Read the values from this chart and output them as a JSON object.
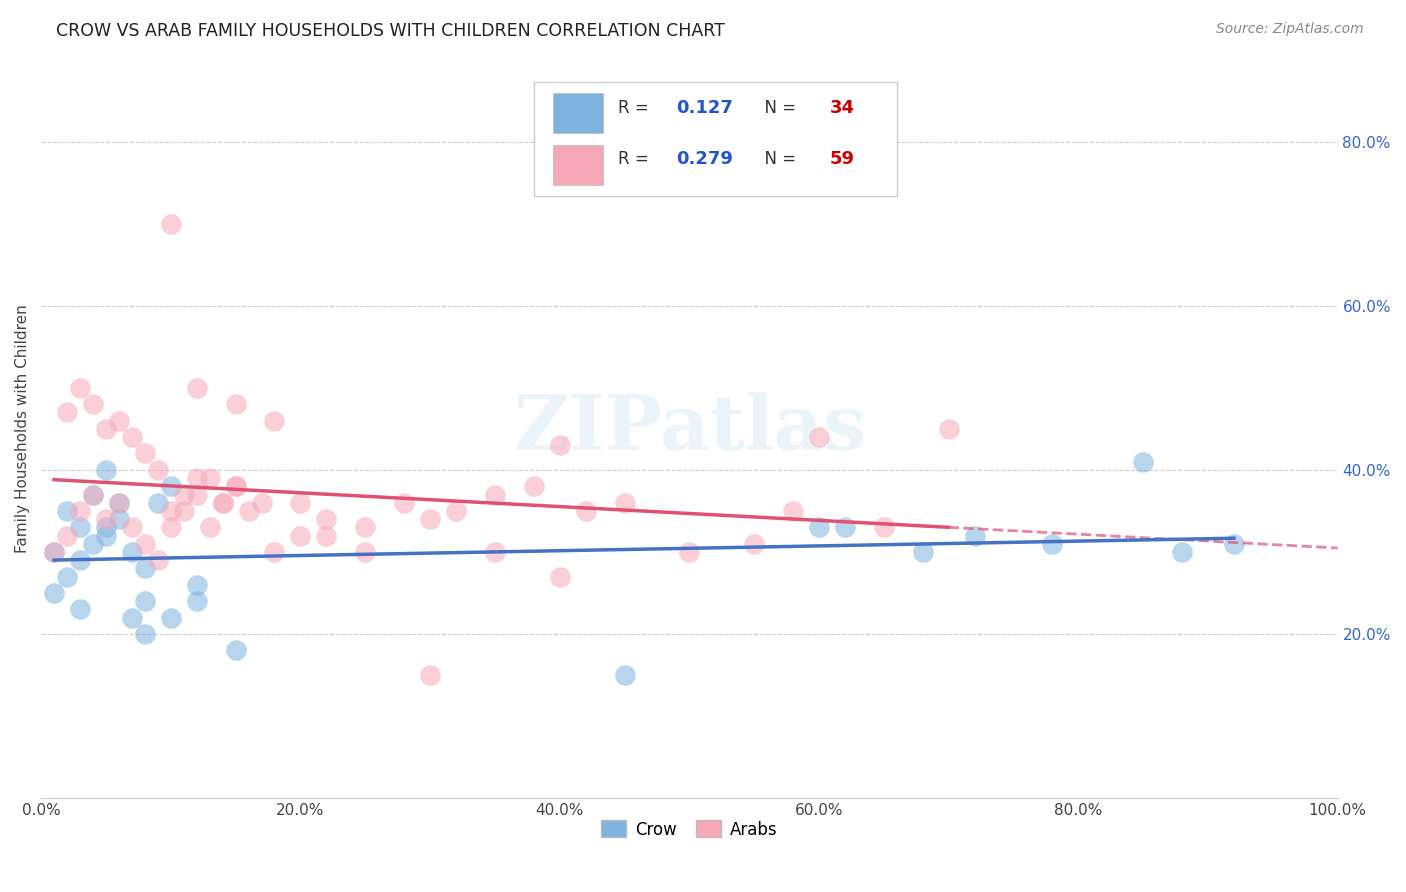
{
  "title": "CROW VS ARAB FAMILY HOUSEHOLDS WITH CHILDREN CORRELATION CHART",
  "source": "Source: ZipAtlas.com",
  "ylabel": "Family Households with Children",
  "watermark": "ZIPatlas",
  "crow_R": 0.127,
  "crow_N": 34,
  "arab_R": 0.279,
  "arab_N": 59,
  "crow_color": "#7EB3E0",
  "arab_color": "#F7A8B8",
  "crow_line_color": "#4472C4",
  "arab_line_color": "#E05070",
  "legend_R_color": "#2255CC",
  "legend_N_color": "#CC0000",
  "background_color": "#FFFFFF",
  "grid_color": "#CCCCCC",
  "title_color": "#222222",
  "source_color": "#888888",
  "crow_x": [
    1,
    2,
    3,
    4,
    5,
    6,
    7,
    8,
    9,
    10,
    1,
    2,
    3,
    4,
    5,
    6,
    7,
    8,
    3,
    5,
    12,
    15,
    10,
    8,
    12,
    62,
    68,
    72,
    78,
    85,
    88,
    92,
    60,
    45
  ],
  "crow_y": [
    30,
    35,
    33,
    37,
    32,
    34,
    30,
    28,
    36,
    38,
    25,
    27,
    29,
    31,
    33,
    36,
    22,
    24,
    23,
    40,
    26,
    18,
    22,
    20,
    24,
    33,
    30,
    32,
    31,
    41,
    30,
    31,
    33,
    15
  ],
  "arab_x": [
    1,
    2,
    3,
    4,
    5,
    6,
    7,
    8,
    9,
    10,
    11,
    12,
    13,
    14,
    15,
    2,
    3,
    4,
    5,
    6,
    7,
    8,
    9,
    10,
    11,
    12,
    13,
    14,
    15,
    16,
    17,
    18,
    20,
    22,
    25,
    28,
    30,
    32,
    35,
    38,
    40,
    42,
    45,
    50,
    55,
    58,
    60,
    65,
    70,
    35,
    40,
    10,
    12,
    15,
    18,
    20,
    22,
    25,
    30
  ],
  "arab_y": [
    30,
    32,
    35,
    37,
    34,
    36,
    33,
    31,
    29,
    33,
    35,
    37,
    39,
    36,
    38,
    47,
    50,
    48,
    45,
    46,
    44,
    42,
    40,
    35,
    37,
    39,
    33,
    36,
    38,
    35,
    36,
    30,
    32,
    34,
    33,
    36,
    34,
    35,
    37,
    38,
    43,
    35,
    36,
    30,
    31,
    35,
    44,
    33,
    45,
    30,
    27,
    70,
    50,
    48,
    46,
    36,
    32,
    30,
    15
  ],
  "xlim": [
    0,
    100
  ],
  "ylim": [
    0,
    90
  ],
  "xticks": [
    0,
    20,
    40,
    60,
    80,
    100
  ],
  "xticklabels": [
    "0.0%",
    "20.0%",
    "40.0%",
    "60.0%",
    "80.0%",
    "100.0%"
  ],
  "yticks_right": [
    20,
    40,
    60,
    80
  ],
  "yticklabels_right": [
    "20.0%",
    "40.0%",
    "60.0%",
    "80.0%"
  ]
}
